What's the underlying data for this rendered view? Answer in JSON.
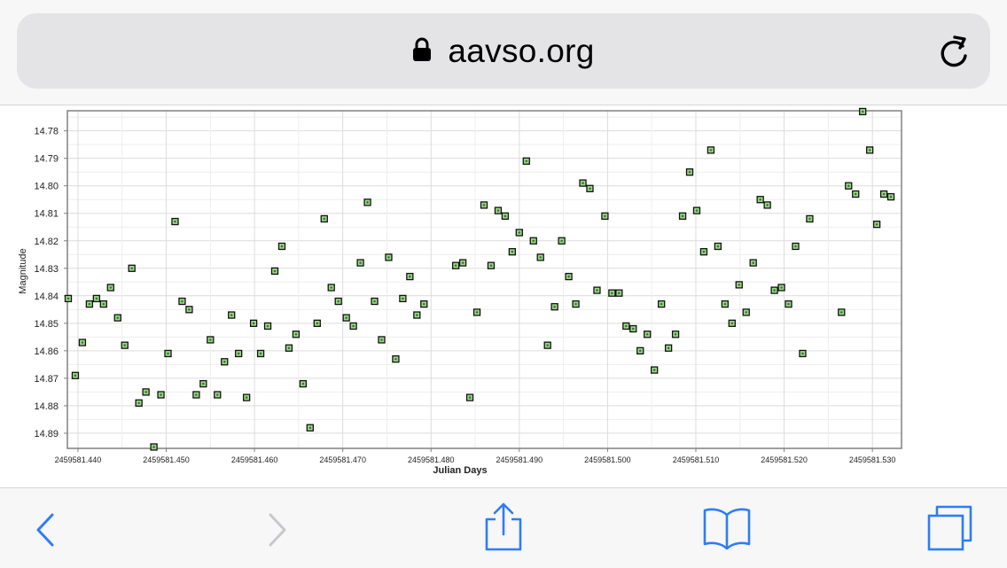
{
  "browser": {
    "url": "aavso.org",
    "icons": {
      "lock": "lock-icon",
      "reload": "reload-icon",
      "back": "back-chevron-icon",
      "forward": "forward-chevron-icon",
      "share": "share-icon",
      "bookmarks": "bookmarks-book-icon",
      "tabs": "tabs-icon"
    },
    "accent_color": "#2e7cf6",
    "disabled_color": "#c7c7cc"
  },
  "chart_data": {
    "type": "scatter",
    "xlabel": "Julian Days",
    "ylabel": "Magnitude",
    "xlim": [
      2459581.4388,
      2459581.5333
    ],
    "ylim": [
      14.7727,
      14.8955
    ],
    "y_inverted": true,
    "grid": true,
    "x_ticks": [
      2459581.44,
      2459581.45,
      2459581.46,
      2459581.47,
      2459581.48,
      2459581.49,
      2459581.5,
      2459581.51,
      2459581.52,
      2459581.53
    ],
    "x_tick_labels": [
      "2459581.440",
      "2459581.450",
      "2459581.460",
      "2459581.470",
      "2459581.480",
      "2459581.490",
      "2459581.500",
      "2459581.510",
      "2459581.520",
      "2459581.530"
    ],
    "y_ticks": [
      14.78,
      14.79,
      14.8,
      14.81,
      14.82,
      14.83,
      14.84,
      14.85,
      14.86,
      14.87,
      14.88,
      14.89
    ],
    "y_tick_labels": [
      "14.78",
      "14.79",
      "14.80",
      "14.81",
      "14.82",
      "14.83",
      "14.84",
      "14.85",
      "14.86",
      "14.87",
      "14.88",
      "14.89"
    ],
    "marker_fill": "#9ed88a",
    "marker_edge": "#111111",
    "points": [
      [
        2459581.4389,
        14.841
      ],
      [
        2459581.4397,
        14.869
      ],
      [
        2459581.4405,
        14.857
      ],
      [
        2459581.4413,
        14.843
      ],
      [
        2459581.4421,
        14.841
      ],
      [
        2459581.4429,
        14.843
      ],
      [
        2459581.4437,
        14.837
      ],
      [
        2459581.4445,
        14.848
      ],
      [
        2459581.4453,
        14.858
      ],
      [
        2459581.4461,
        14.83
      ],
      [
        2459581.4469,
        14.879
      ],
      [
        2459581.4477,
        14.875
      ],
      [
        2459581.4486,
        14.895
      ],
      [
        2459581.4494,
        14.876
      ],
      [
        2459581.4502,
        14.861
      ],
      [
        2459581.451,
        14.813
      ],
      [
        2459581.4518,
        14.842
      ],
      [
        2459581.4526,
        14.845
      ],
      [
        2459581.4534,
        14.876
      ],
      [
        2459581.4542,
        14.872
      ],
      [
        2459581.455,
        14.856
      ],
      [
        2459581.4558,
        14.876
      ],
      [
        2459581.4566,
        14.864
      ],
      [
        2459581.4574,
        14.847
      ],
      [
        2459581.4582,
        14.861
      ],
      [
        2459581.4591,
        14.877
      ],
      [
        2459581.4599,
        14.85
      ],
      [
        2459581.4607,
        14.861
      ],
      [
        2459581.4615,
        14.851
      ],
      [
        2459581.4623,
        14.831
      ],
      [
        2459581.4631,
        14.822
      ],
      [
        2459581.4639,
        14.859
      ],
      [
        2459581.4647,
        14.854
      ],
      [
        2459581.4655,
        14.872
      ],
      [
        2459581.4663,
        14.888
      ],
      [
        2459581.4671,
        14.85
      ],
      [
        2459581.4679,
        14.812
      ],
      [
        2459581.4687,
        14.837
      ],
      [
        2459581.4695,
        14.842
      ],
      [
        2459581.4704,
        14.848
      ],
      [
        2459581.4712,
        14.851
      ],
      [
        2459581.472,
        14.828
      ],
      [
        2459581.4728,
        14.806
      ],
      [
        2459581.4736,
        14.842
      ],
      [
        2459581.4744,
        14.856
      ],
      [
        2459581.4752,
        14.826
      ],
      [
        2459581.476,
        14.863
      ],
      [
        2459581.4768,
        14.841
      ],
      [
        2459581.4776,
        14.833
      ],
      [
        2459581.4784,
        14.847
      ],
      [
        2459581.4792,
        14.843
      ],
      [
        2459581.4828,
        14.829
      ],
      [
        2459581.4836,
        14.828
      ],
      [
        2459581.4844,
        14.877
      ],
      [
        2459581.4852,
        14.846
      ],
      [
        2459581.486,
        14.807
      ],
      [
        2459581.4868,
        14.829
      ],
      [
        2459581.4876,
        14.809
      ],
      [
        2459581.4884,
        14.811
      ],
      [
        2459581.4892,
        14.824
      ],
      [
        2459581.49,
        14.817
      ],
      [
        2459581.4908,
        14.791
      ],
      [
        2459581.4916,
        14.82
      ],
      [
        2459581.4924,
        14.826
      ],
      [
        2459581.4932,
        14.858
      ],
      [
        2459581.494,
        14.844
      ],
      [
        2459581.4948,
        14.82
      ],
      [
        2459581.4956,
        14.833
      ],
      [
        2459581.4964,
        14.843
      ],
      [
        2459581.4972,
        14.799
      ],
      [
        2459581.498,
        14.801
      ],
      [
        2459581.4988,
        14.838
      ],
      [
        2459581.4997,
        14.811
      ],
      [
        2459581.5005,
        14.839
      ],
      [
        2459581.5013,
        14.839
      ],
      [
        2459581.5021,
        14.851
      ],
      [
        2459581.5029,
        14.852
      ],
      [
        2459581.5037,
        14.86
      ],
      [
        2459581.5045,
        14.854
      ],
      [
        2459581.5053,
        14.867
      ],
      [
        2459581.5061,
        14.843
      ],
      [
        2459581.5069,
        14.859
      ],
      [
        2459581.5077,
        14.854
      ],
      [
        2459581.5085,
        14.811
      ],
      [
        2459581.5093,
        14.795
      ],
      [
        2459581.5101,
        14.809
      ],
      [
        2459581.5109,
        14.824
      ],
      [
        2459581.5117,
        14.787
      ],
      [
        2459581.5125,
        14.822
      ],
      [
        2459581.5133,
        14.843
      ],
      [
        2459581.5141,
        14.85
      ],
      [
        2459581.5149,
        14.836
      ],
      [
        2459581.5157,
        14.846
      ],
      [
        2459581.5165,
        14.828
      ],
      [
        2459581.5173,
        14.805
      ],
      [
        2459581.5181,
        14.807
      ],
      [
        2459581.5189,
        14.838
      ],
      [
        2459581.5197,
        14.837
      ],
      [
        2459581.5205,
        14.843
      ],
      [
        2459581.5213,
        14.822
      ],
      [
        2459581.5221,
        14.861
      ],
      [
        2459581.5229,
        14.812
      ],
      [
        2459581.5265,
        14.846
      ],
      [
        2459581.5273,
        14.8
      ],
      [
        2459581.5281,
        14.803
      ],
      [
        2459581.5289,
        14.773
      ],
      [
        2459581.5297,
        14.787
      ],
      [
        2459581.5305,
        14.814
      ],
      [
        2459581.5313,
        14.803
      ],
      [
        2459581.5321,
        14.804
      ]
    ]
  }
}
